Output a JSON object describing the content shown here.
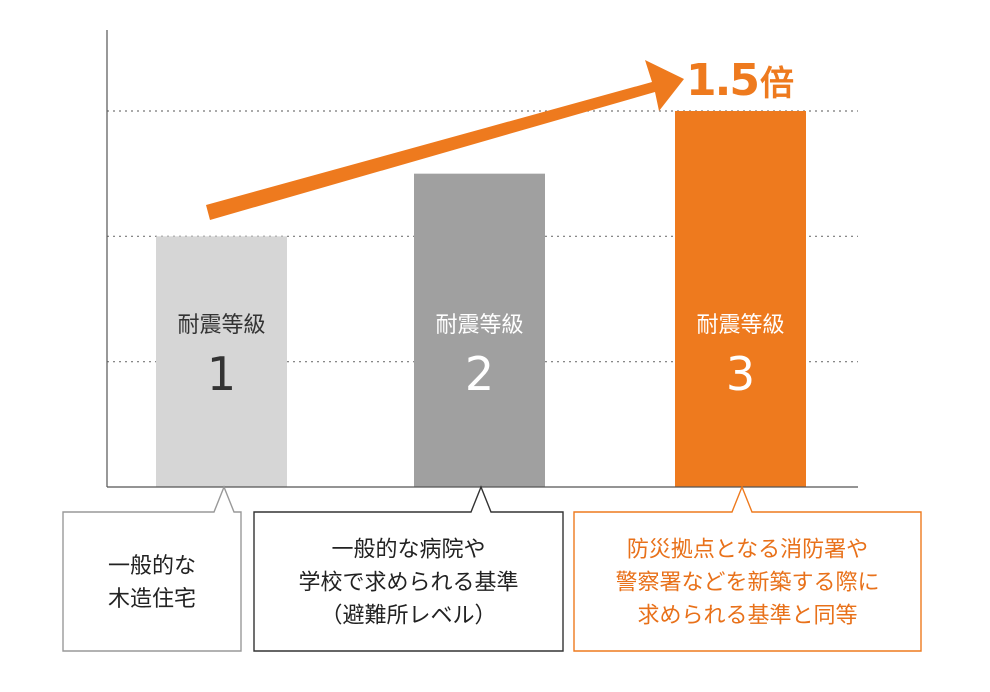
{
  "chart_data": {
    "type": "bar",
    "categories": [
      "耐震等級 1",
      "耐震等級 2",
      "耐震等級 3"
    ],
    "series": [
      {
        "values": [
          1.0,
          1.25,
          1.5
        ]
      }
    ],
    "bar_labels": [
      {
        "top": "耐震等級",
        "num": "1"
      },
      {
        "top": "耐震等級",
        "num": "2"
      },
      {
        "top": "耐震等級",
        "num": "3"
      }
    ],
    "ylim": [
      0,
      1.5
    ],
    "gridlines": [
      0.5,
      1.0,
      1.5
    ],
    "grid_style": "dotted",
    "arrow_annotation": {
      "value": "1.5",
      "unit": "倍"
    },
    "callouts": [
      [
        "一般的な",
        "木造住宅"
      ],
      [
        "一般的な病院や",
        "学校で求められる基準",
        "（避難所レベル）"
      ],
      [
        "防災拠点となる消防署や",
        "警察署などを新築する際に",
        "求められる基準と同等"
      ]
    ],
    "colors": {
      "bars": [
        "#d6d6d6",
        "#a0a0a0",
        "#ee7a1e"
      ],
      "bar_label_text": [
        "#333333",
        "#ffffff",
        "#ffffff"
      ],
      "callout_border": [
        "#999999",
        "#333333",
        "#ee7a1e"
      ],
      "callout_text": [
        "#222222",
        "#222222",
        "#e8711a"
      ],
      "accent": "#ee7a1e",
      "axis": "#555555",
      "grid": "#777777"
    }
  }
}
